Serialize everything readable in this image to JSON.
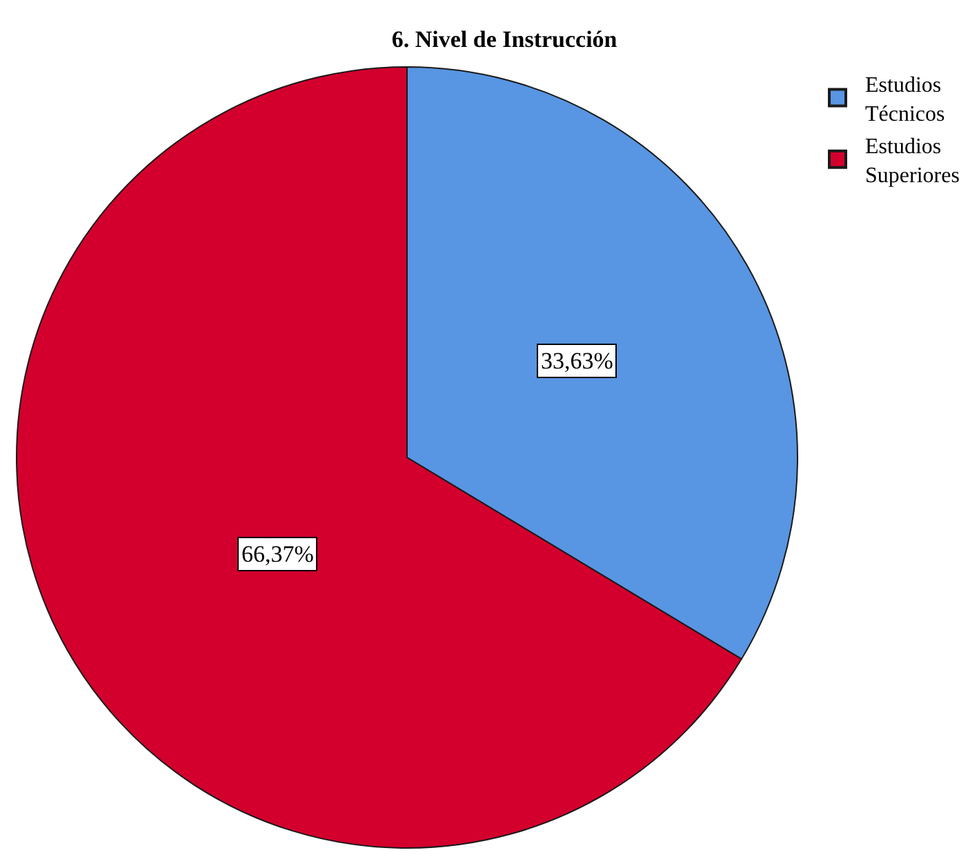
{
  "chart_data": {
    "type": "pie",
    "title": "6. Nivel de Instrucción",
    "categories": [
      "Estudios Técnicos",
      "Estudios Superiores"
    ],
    "values": [
      33.63,
      66.37
    ],
    "colors": [
      "#5895e2",
      "#d3002d"
    ],
    "value_labels": [
      "33,63%",
      "66,37%"
    ],
    "legend": "top right"
  }
}
